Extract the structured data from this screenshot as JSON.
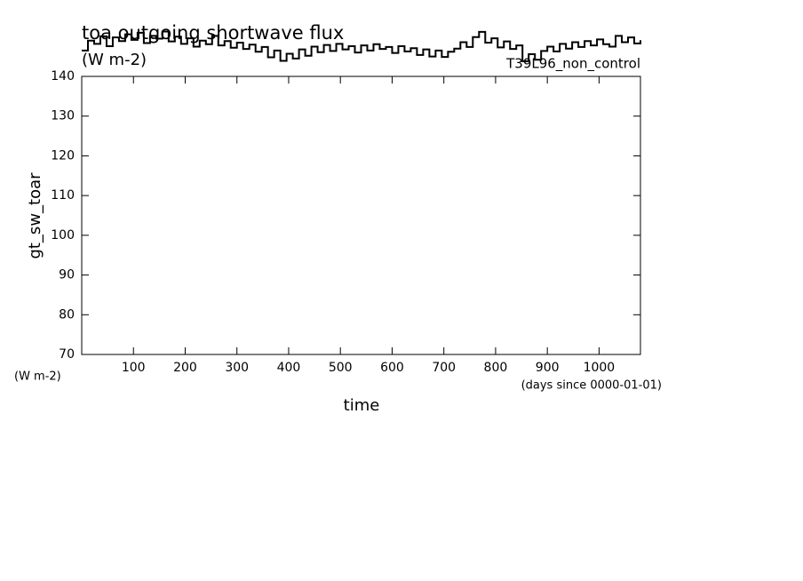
{
  "chart_data": {
    "type": "line",
    "title": "toa outgoing shortwave flux",
    "title_units": "(W m-2)",
    "y_label": "gt_sw_toar",
    "y_units": "(W m-2)",
    "x_label": "time",
    "x_units": "(days since 0000-01-01)",
    "x": [
      0,
      12,
      24,
      36,
      48,
      60,
      72,
      84,
      96,
      108,
      120,
      132,
      144,
      156,
      168,
      180,
      192,
      204,
      216,
      228,
      240,
      252,
      264,
      276,
      288,
      300,
      312,
      324,
      336,
      348,
      360,
      372,
      384,
      396,
      408,
      420,
      432,
      444,
      456,
      468,
      480,
      492,
      504,
      516,
      528,
      540,
      552,
      564,
      576,
      588,
      600,
      612,
      624,
      636,
      648,
      660,
      672,
      684,
      696,
      708,
      720,
      732,
      744,
      756,
      768,
      780,
      792,
      804,
      816,
      828,
      840,
      852,
      864,
      876,
      888,
      900,
      912,
      924,
      936,
      948,
      960,
      972,
      984,
      996,
      1008,
      1020,
      1032,
      1044,
      1056,
      1068,
      1080
    ],
    "series": [
      {
        "name": "T39L96_non_control",
        "color": "#000000",
        "values": [
          146.5,
          149,
          148.2,
          150.1,
          147.6,
          149.8,
          148.9,
          150.6,
          149.2,
          151.0,
          148.4,
          150.2,
          149.5,
          151.3,
          148.8,
          150.0,
          148.2,
          149.6,
          147.5,
          149.0,
          148.1,
          150.2,
          147.8,
          148.9,
          147.2,
          148.5,
          146.9,
          148.0,
          146.2,
          147.4,
          144.8,
          146.5,
          143.9,
          145.7,
          144.5,
          146.8,
          145.2,
          147.5,
          146.1,
          147.9,
          146.4,
          148.2,
          146.8,
          147.6,
          146.0,
          147.8,
          146.5,
          148.1,
          146.9,
          147.4,
          145.9,
          147.6,
          146.3,
          147.1,
          145.4,
          146.8,
          145.0,
          146.5,
          144.9,
          146.2,
          147.0,
          148.6,
          147.4,
          149.9,
          151.2,
          148.5,
          149.6,
          147.3,
          148.8,
          146.9,
          147.8,
          143.8,
          145.6,
          144.2,
          146.4,
          147.5,
          146.3,
          148.2,
          147.0,
          148.6,
          147.4,
          148.9,
          147.8,
          149.3,
          148.1,
          147.5,
          150.2,
          148.6,
          149.8,
          148.3,
          149.1
        ]
      }
    ],
    "xlim": [
      0,
      1080
    ],
    "ylim": [
      70,
      140
    ],
    "xticks": [
      100,
      200,
      300,
      400,
      500,
      600,
      700,
      800,
      900,
      1000
    ],
    "yticks": [
      70,
      80,
      90,
      100,
      110,
      120,
      130,
      140
    ]
  }
}
